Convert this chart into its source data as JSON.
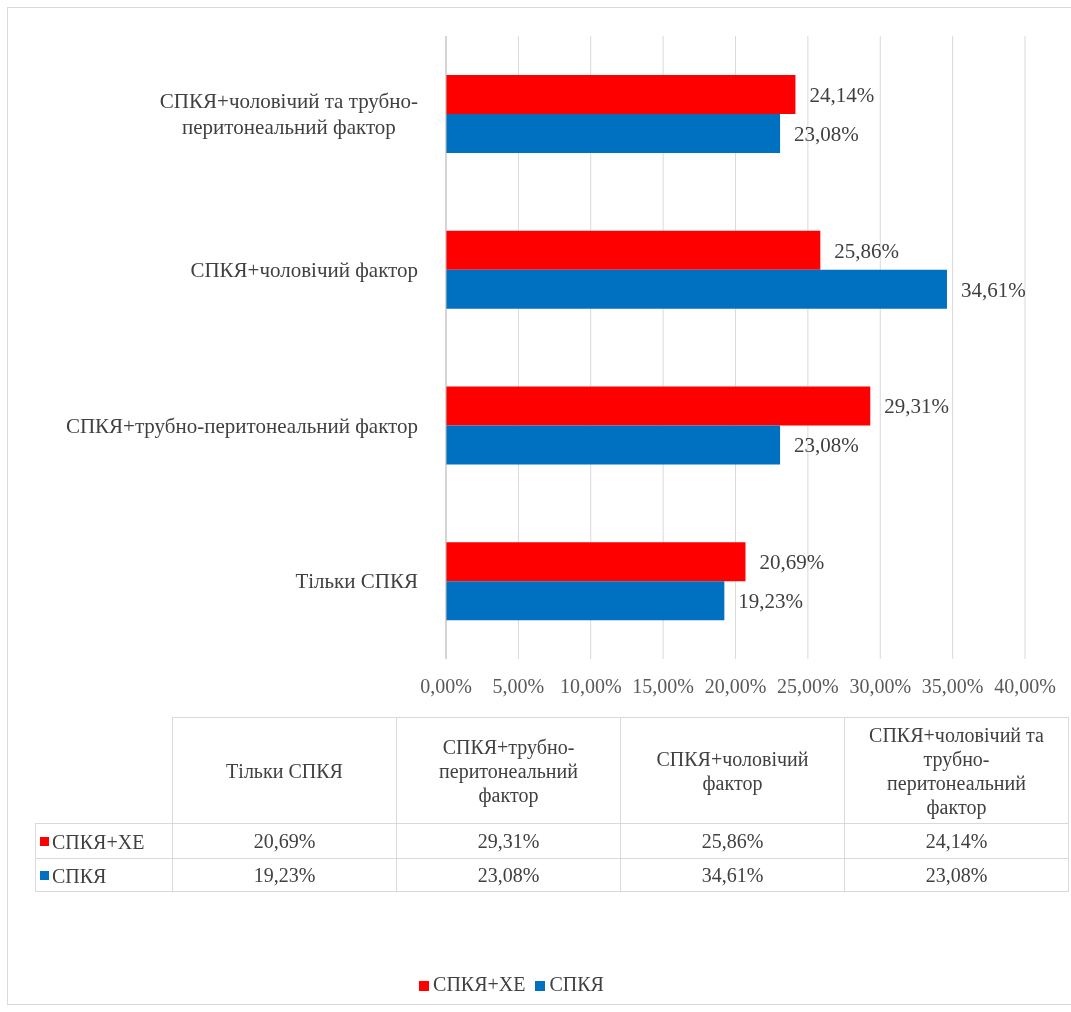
{
  "chart_data": {
    "type": "bar",
    "orientation": "horizontal",
    "categories": [
      "СПКЯ+чоловічий та трубно-перитонеальний фактор",
      "СПКЯ+чоловічий фактор",
      "СПКЯ+трубно-перитонеальний фактор",
      "Тільки СПКЯ"
    ],
    "series": [
      {
        "name": "СПКЯ+ХЕ",
        "color": "#ff0000",
        "values": [
          24.14,
          25.86,
          29.31,
          20.69
        ],
        "value_labels": [
          "24,14%",
          "25,86%",
          "29,31%",
          "20,69%"
        ]
      },
      {
        "name": "СПКЯ",
        "color": "#0070c0",
        "values": [
          23.08,
          34.61,
          23.08,
          19.23
        ],
        "value_labels": [
          "23,08%",
          "34,61%",
          "23,08%",
          "19,23%"
        ]
      }
    ],
    "xlim": [
      0,
      40
    ],
    "xticks": [
      {
        "value": 0,
        "label": "0,00%"
      },
      {
        "value": 5,
        "label": "5,00%"
      },
      {
        "value": 10,
        "label": "10,00%"
      },
      {
        "value": 15,
        "label": "15,00%"
      },
      {
        "value": 20,
        "label": "20,00%"
      },
      {
        "value": 25,
        "label": "25,00%"
      },
      {
        "value": 30,
        "label": "30,00%"
      },
      {
        "value": 35,
        "label": "35,00%"
      },
      {
        "value": 40,
        "label": "40,00%"
      }
    ],
    "grid": "x",
    "legend": "bottom"
  }
}
